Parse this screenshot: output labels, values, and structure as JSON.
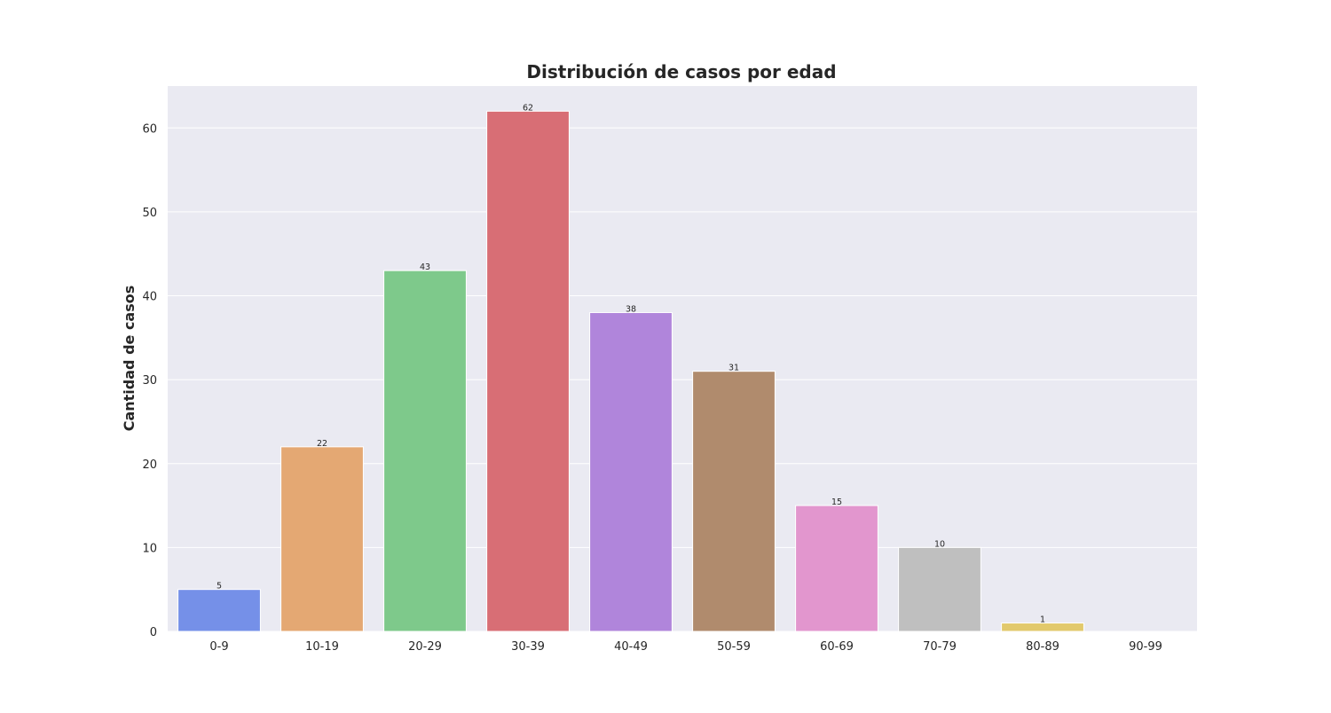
{
  "chart_data": {
    "type": "bar",
    "title": "Distribución de casos por edad",
    "xlabel": "",
    "ylabel": "Cantidad de casos",
    "categories": [
      "0-9",
      "10-19",
      "20-29",
      "30-39",
      "40-49",
      "50-59",
      "60-69",
      "70-79",
      "80-89",
      "90-99"
    ],
    "values": [
      5,
      22,
      43,
      62,
      38,
      31,
      15,
      10,
      1,
      0
    ],
    "data_labels": [
      "5",
      "22",
      "43",
      "62",
      "38",
      "31",
      "15",
      "10",
      "1",
      ""
    ],
    "colors": [
      "#7590e8",
      "#e4a873",
      "#7ec98b",
      "#d86e75",
      "#b085db",
      "#b08b6d",
      "#e296ce",
      "#bfbfbf",
      "#e2c96c",
      "#9ed8ec"
    ],
    "ylim": [
      0,
      65
    ],
    "yticks": [
      0,
      10,
      20,
      30,
      40,
      50,
      60
    ],
    "grid": true,
    "background": "#eaeaf2",
    "gridline_color": "#ffffff"
  }
}
